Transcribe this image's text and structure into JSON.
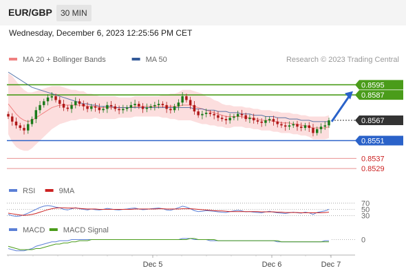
{
  "header": {
    "pair": "EUR/GBP",
    "timeframe": "30 MIN"
  },
  "timestamp": "Wednesday, December 6, 2023 12:25:56 PM CET",
  "credit": "Research © 2023 Trading Central",
  "colors": {
    "resistance": "#4a9c1a",
    "support": "#2a62c9",
    "support_light": "#e88f8f",
    "current": "#333333",
    "bollinger_fill": "#fbd8d8",
    "ma20": "#f08080",
    "ma50": "#335a99",
    "candle_up": "#1a7a1a",
    "candle_down": "#b01818",
    "rsi": "#5b7fd6",
    "rsi_ma": "#cc2222",
    "macd": "#5b7fd6",
    "macd_signal": "#4a9c1a",
    "arrow": "#2a62c9"
  },
  "chart_data": [
    {
      "type": "candlestick",
      "name": "price",
      "legend": [
        {
          "name": "MA 20 + Bollinger Bands",
          "color": "#f08080"
        },
        {
          "name": "MA 50",
          "color": "#335a99"
        }
      ],
      "x_ticks": [
        "Dec 5",
        "Dec 6",
        "Dec 7"
      ],
      "ylim": [
        0.8522,
        0.8612
      ],
      "levels": [
        {
          "label": "0.8595",
          "value": 0.8595,
          "kind": "resistance"
        },
        {
          "label": "0.8587",
          "value": 0.8587,
          "kind": "resistance"
        },
        {
          "label": "0.8567",
          "value": 0.8567,
          "kind": "current"
        },
        {
          "label": "0.8551",
          "value": 0.8551,
          "kind": "support"
        },
        {
          "label": "0.8537",
          "value": 0.8537,
          "kind": "support_light"
        },
        {
          "label": "0.8529",
          "value": 0.8529,
          "kind": "support_light"
        }
      ],
      "closes": [
        0.857,
        0.8566,
        0.8563,
        0.8561,
        0.8559,
        0.8564,
        0.8568,
        0.8575,
        0.8579,
        0.8582,
        0.8585,
        0.8586,
        0.8583,
        0.858,
        0.8577,
        0.8576,
        0.8579,
        0.8582,
        0.858,
        0.8578,
        0.8576,
        0.8578,
        0.8577,
        0.8575,
        0.8576,
        0.8579,
        0.8578,
        0.8576,
        0.8575,
        0.8576,
        0.8577,
        0.8579,
        0.858,
        0.8578,
        0.8576,
        0.8577,
        0.8578,
        0.8579,
        0.858,
        0.8579,
        0.8576,
        0.8575,
        0.8578,
        0.8581,
        0.8586,
        0.8583,
        0.8579,
        0.8574,
        0.8571,
        0.8572,
        0.8573,
        0.8572,
        0.8571,
        0.8569,
        0.8568,
        0.8567,
        0.8569,
        0.857,
        0.8572,
        0.8571,
        0.8568,
        0.8569,
        0.8567,
        0.8566,
        0.8565,
        0.8567,
        0.8568,
        0.8566,
        0.8564,
        0.8563,
        0.8562,
        0.8563,
        0.8564,
        0.8562,
        0.8561,
        0.8563,
        0.8561,
        0.8557,
        0.856,
        0.8562,
        0.8563,
        0.8567
      ],
      "ma20": [
        0.858,
        0.8576,
        0.8572,
        0.8569,
        0.8567,
        0.8566,
        0.8567,
        0.8569,
        0.8571,
        0.8573,
        0.8575,
        0.8577,
        0.8578,
        0.8579,
        0.8579,
        0.8579,
        0.8579,
        0.8579,
        0.8579,
        0.8579,
        0.8578,
        0.8578,
        0.8578,
        0.8577,
        0.8577,
        0.8577,
        0.8577,
        0.8577,
        0.8577,
        0.8577,
        0.8577,
        0.8577,
        0.8578,
        0.8578,
        0.8578,
        0.8578,
        0.8578,
        0.8578,
        0.8578,
        0.8578,
        0.8578,
        0.8578,
        0.8578,
        0.8578,
        0.8579,
        0.8579,
        0.8579,
        0.8578,
        0.8577,
        0.8576,
        0.8575,
        0.8574,
        0.8573,
        0.8572,
        0.8571,
        0.857,
        0.857,
        0.857,
        0.857,
        0.857,
        0.8569,
        0.8569,
        0.8568,
        0.8568,
        0.8567,
        0.8567,
        0.8567,
        0.8566,
        0.8566,
        0.8565,
        0.8565,
        0.8565,
        0.8564,
        0.8564,
        0.8563,
        0.8563,
        0.8562,
        0.8561,
        0.8561,
        0.8561,
        0.8561,
        0.8562
      ],
      "bb_width": [
        0.0024,
        0.0026,
        0.0026,
        0.0025,
        0.0024,
        0.0023,
        0.0022,
        0.0021,
        0.002,
        0.0019,
        0.0018,
        0.0017,
        0.0016,
        0.0015,
        0.0014,
        0.0013,
        0.0012,
        0.0012,
        0.0011,
        0.0011,
        0.001,
        0.001,
        0.0009,
        0.0009,
        0.0009,
        0.0009,
        0.0009,
        0.0009,
        0.0008,
        0.0008,
        0.0008,
        0.0008,
        0.0008,
        0.0008,
        0.0008,
        0.0008,
        0.0008,
        0.0008,
        0.0008,
        0.0009,
        0.0009,
        0.001,
        0.001,
        0.0011,
        0.0012,
        0.0012,
        0.0012,
        0.0012,
        0.0012,
        0.0012,
        0.0011,
        0.0011,
        0.001,
        0.001,
        0.0009,
        0.0009,
        0.0009,
        0.0008,
        0.0008,
        0.0008,
        0.0008,
        0.0008,
        0.0008,
        0.0008,
        0.0008,
        0.0008,
        0.0008,
        0.0008,
        0.0008,
        0.0008,
        0.0008,
        0.0008,
        0.0008,
        0.0008,
        0.0008,
        0.0008,
        0.0008,
        0.0009,
        0.0009,
        0.0009,
        0.0009,
        0.0009
      ],
      "ma50": [
        0.8605,
        0.8603,
        0.8601,
        0.8599,
        0.8597,
        0.8595,
        0.8593,
        0.8592,
        0.8591,
        0.859,
        0.8589,
        0.8588,
        0.8587,
        0.8586,
        0.8585,
        0.8584,
        0.8583,
        0.8582,
        0.8581,
        0.858,
        0.858,
        0.8579,
        0.8579,
        0.8578,
        0.8578,
        0.8578,
        0.8578,
        0.8577,
        0.8577,
        0.8577,
        0.8577,
        0.8577,
        0.8577,
        0.8577,
        0.8577,
        0.8577,
        0.8577,
        0.8577,
        0.8577,
        0.8577,
        0.8577,
        0.8577,
        0.8577,
        0.8577,
        0.8577,
        0.8577,
        0.8577,
        0.8576,
        0.8576,
        0.8576,
        0.8575,
        0.8575,
        0.8575,
        0.8574,
        0.8574,
        0.8574,
        0.8573,
        0.8573,
        0.8573,
        0.8572,
        0.8572,
        0.8572,
        0.8571,
        0.8571,
        0.8571,
        0.857,
        0.857,
        0.857,
        0.8569,
        0.8569,
        0.8569,
        0.8568,
        0.8568,
        0.8568,
        0.8567,
        0.8567,
        0.8567,
        0.8566,
        0.8566,
        0.8566,
        0.8566,
        0.8566
      ],
      "forecast_arrow": {
        "from": 0.8566,
        "to": 0.859
      }
    },
    {
      "type": "line",
      "name": "rsi",
      "legend": [
        {
          "name": "RSI",
          "color": "#5b7fd6"
        },
        {
          "name": "9MA",
          "color": "#cc2222"
        }
      ],
      "ylim": [
        25,
        75
      ],
      "levels": [
        {
          "label": "70",
          "value": 70
        },
        {
          "label": "50",
          "value": 50
        },
        {
          "label": "30",
          "value": 30
        }
      ],
      "series": [
        {
          "name": "RSI",
          "values": [
            34,
            30,
            28,
            29,
            33,
            38,
            44,
            50,
            56,
            60,
            62,
            60,
            57,
            55,
            50,
            48,
            52,
            55,
            52,
            50,
            48,
            51,
            49,
            48,
            50,
            53,
            51,
            49,
            48,
            50,
            51,
            53,
            54,
            51,
            49,
            50,
            52,
            53,
            54,
            52,
            48,
            47,
            51,
            55,
            60,
            57,
            52,
            46,
            43,
            44,
            46,
            45,
            44,
            42,
            41,
            40,
            43,
            45,
            47,
            45,
            42,
            43,
            41,
            40,
            39,
            42,
            44,
            41,
            39,
            38,
            37,
            39,
            41,
            39,
            38,
            41,
            39,
            34,
            40,
            43,
            45,
            50
          ]
        },
        {
          "name": "9MA",
          "values": [
            38,
            36,
            34,
            32,
            31,
            32,
            34,
            37,
            41,
            45,
            49,
            52,
            54,
            55,
            55,
            54,
            54,
            54,
            53,
            52,
            51,
            51,
            51,
            50,
            50,
            50,
            50,
            50,
            50,
            50,
            50,
            50,
            51,
            51,
            51,
            51,
            51,
            51,
            52,
            52,
            51,
            51,
            51,
            51,
            52,
            52,
            52,
            51,
            50,
            49,
            48,
            47,
            46,
            45,
            45,
            44,
            43,
            43,
            43,
            43,
            43,
            43,
            43,
            43,
            42,
            42,
            42,
            42,
            41,
            41,
            40,
            40,
            40,
            40,
            39,
            39,
            39,
            39,
            39,
            39,
            40,
            41
          ]
        }
      ]
    },
    {
      "type": "line",
      "name": "macd",
      "legend": [
        {
          "name": "MACD",
          "color": "#5b7fd6"
        },
        {
          "name": "MACD Signal",
          "color": "#4a9c1a"
        }
      ],
      "ylim": [
        -0.0012,
        0.0004
      ],
      "levels": [
        {
          "label": "0",
          "value": 0
        }
      ],
      "series": [
        {
          "name": "MACD",
          "values": [
            -0.0008,
            -0.0009,
            -0.001,
            -0.001,
            -0.001,
            -0.0009,
            -0.0008,
            -0.0006,
            -0.0005,
            -0.0004,
            -0.0003,
            -0.0002,
            -0.0002,
            -0.0001,
            -0.0001,
            -0.0001,
            0.0,
            0.0,
            0.0,
            0.0,
            0.0,
            0.0,
            0.0,
            0.0,
            0.0,
            0.0,
            0.0,
            0.0,
            0.0,
            0.0,
            0.0,
            0.0,
            0.0,
            0.0,
            0.0,
            0.0,
            0.0,
            0.0,
            0.0,
            0.0,
            0.0,
            0.0,
            0.0,
            0.0,
            0.0001,
            0.0001,
            0.0001,
            0.0,
            0.0,
            0.0,
            0.0,
            -0.0001,
            -0.0001,
            -0.0001,
            -0.0001,
            -0.0001,
            -0.0001,
            -0.0001,
            -0.0001,
            -0.0001,
            -0.0001,
            -0.0001,
            -0.0001,
            -0.0001,
            -0.0001,
            -0.0001,
            -0.0001,
            -0.0001,
            -0.0002,
            -0.0002,
            -0.0002,
            -0.0002,
            -0.0002,
            -0.0002,
            -0.0002,
            -0.0002,
            -0.0002,
            -0.0002,
            -0.0002,
            -0.0002,
            -0.0001,
            -0.0001
          ]
        },
        {
          "name": "MACD Signal",
          "values": [
            -0.0006,
            -0.0007,
            -0.0008,
            -0.0009,
            -0.0009,
            -0.0009,
            -0.0009,
            -0.0008,
            -0.0008,
            -0.0007,
            -0.0006,
            -0.0005,
            -0.0004,
            -0.0004,
            -0.0003,
            -0.0003,
            -0.0002,
            -0.0002,
            -0.0001,
            -0.0001,
            -0.0001,
            0.0,
            0.0,
            0.0,
            0.0,
            0.0,
            0.0,
            0.0,
            0.0,
            0.0,
            0.0,
            0.0,
            0.0,
            0.0,
            0.0,
            0.0,
            0.0,
            0.0,
            0.0,
            0.0,
            0.0,
            0.0,
            0.0,
            0.0,
            0.0,
            0.0,
            0.0001,
            0.0001,
            0.0,
            0.0,
            0.0,
            0.0,
            0.0,
            -0.0001,
            -0.0001,
            -0.0001,
            -0.0001,
            -0.0001,
            -0.0001,
            -0.0001,
            -0.0001,
            -0.0001,
            -0.0001,
            -0.0001,
            -0.0001,
            -0.0001,
            -0.0001,
            -0.0001,
            -0.0001,
            -0.0002,
            -0.0002,
            -0.0002,
            -0.0002,
            -0.0002,
            -0.0002,
            -0.0002,
            -0.0002,
            -0.0002,
            -0.0002,
            -0.0002,
            -0.0002,
            -0.0002
          ]
        }
      ]
    }
  ]
}
